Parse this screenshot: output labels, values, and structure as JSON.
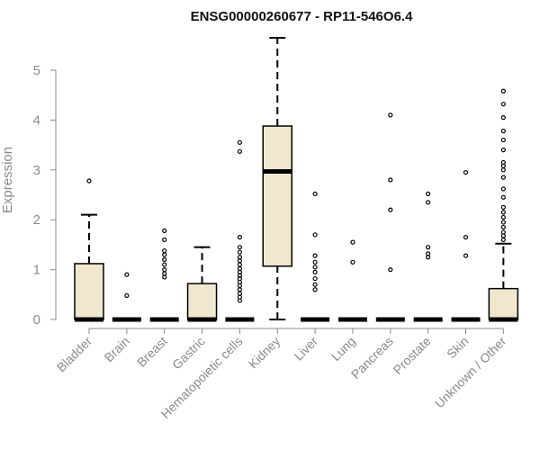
{
  "chart_data": {
    "type": "boxplot",
    "title": "ENSG00000260677 - RP11-546O6.4",
    "xlabel": "",
    "ylabel": "Expression",
    "ylim": [
      0,
      5.6
    ],
    "yticks": [
      0,
      1,
      2,
      3,
      4,
      5
    ],
    "grid": false,
    "legend": "none",
    "box_fill": "#efe8cf",
    "box_stroke": "#000000",
    "categories": [
      "Bladder",
      "Brain",
      "Breast",
      "Gastric",
      "Hematopoietic cells",
      "Kidney",
      "Liver",
      "Lung",
      "Pancreas",
      "Prostate",
      "Skin",
      "Unknown / Other"
    ],
    "boxes": [
      {
        "whisker_low": 0,
        "q1": 0,
        "median": 0,
        "q3": 1.12,
        "whisker_high": 2.1,
        "outliers": [
          2.78
        ]
      },
      {
        "whisker_low": 0,
        "q1": 0,
        "median": 0,
        "q3": 0,
        "whisker_high": 0,
        "outliers": [
          0.48,
          0.9
        ]
      },
      {
        "whisker_low": 0,
        "q1": 0,
        "median": 0,
        "q3": 0,
        "whisker_high": 0,
        "outliers": [
          0.85,
          0.92,
          1.0,
          1.1,
          1.2,
          1.3,
          1.38,
          1.6,
          1.78
        ]
      },
      {
        "whisker_low": 0,
        "q1": 0,
        "median": 0,
        "q3": 0.72,
        "whisker_high": 1.45,
        "outliers": []
      },
      {
        "whisker_low": 0,
        "q1": 0,
        "median": 0,
        "q3": 0,
        "whisker_high": 0,
        "outliers": [
          0.38,
          0.45,
          0.52,
          0.6,
          0.68,
          0.75,
          0.82,
          0.88,
          0.95,
          1.02,
          1.1,
          1.18,
          1.25,
          1.35,
          1.45,
          1.65,
          3.37,
          3.55
        ]
      },
      {
        "whisker_low": 0,
        "q1": 1.07,
        "median": 2.97,
        "q3": 3.88,
        "whisker_high": 5.65,
        "outliers": []
      },
      {
        "whisker_low": 0,
        "q1": 0,
        "median": 0,
        "q3": 0,
        "whisker_high": 0,
        "outliers": [
          0.6,
          0.7,
          0.82,
          0.95,
          1.05,
          1.15,
          1.28,
          1.7,
          2.52
        ]
      },
      {
        "whisker_low": 0,
        "q1": 0,
        "median": 0,
        "q3": 0,
        "whisker_high": 0,
        "outliers": [
          1.15,
          1.55
        ]
      },
      {
        "whisker_low": 0,
        "q1": 0,
        "median": 0,
        "q3": 0,
        "whisker_high": 0,
        "outliers": [
          1.0,
          2.2,
          2.8,
          4.1
        ]
      },
      {
        "whisker_low": 0,
        "q1": 0,
        "median": 0,
        "q3": 0,
        "whisker_high": 0,
        "outliers": [
          1.25,
          1.32,
          1.45,
          2.35,
          2.52
        ]
      },
      {
        "whisker_low": 0,
        "q1": 0,
        "median": 0,
        "q3": 0,
        "whisker_high": 0,
        "outliers": [
          1.28,
          1.65,
          2.95
        ]
      },
      {
        "whisker_low": 0,
        "q1": 0,
        "median": 0,
        "q3": 0.62,
        "whisker_high": 1.52,
        "outliers": [
          1.6,
          1.68,
          1.75,
          1.85,
          1.95,
          2.05,
          2.15,
          2.25,
          2.45,
          2.62,
          2.85,
          3.0,
          3.08,
          3.15,
          3.4,
          3.6,
          3.78,
          4.05,
          4.32,
          4.58
        ]
      }
    ]
  }
}
